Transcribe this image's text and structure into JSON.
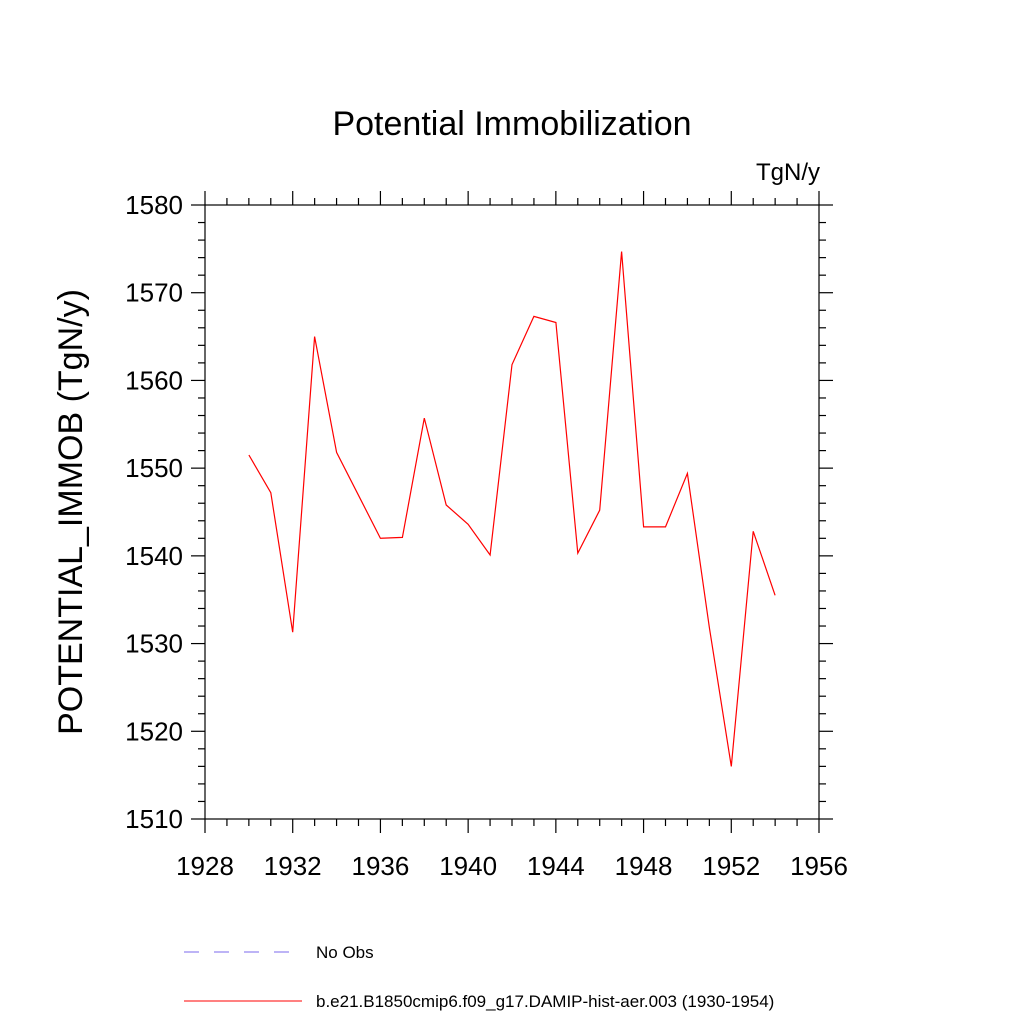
{
  "chart_data": {
    "type": "line",
    "title": "Potential Immobilization",
    "units": "TgN/y",
    "ylabel": "POTENTIAL_IMMOB  (TgN/y)",
    "xlabel": "",
    "xlim": [
      1928,
      1956
    ],
    "ylim": [
      1510,
      1580
    ],
    "xticks": [
      "1928",
      "1932",
      "1936",
      "1940",
      "1944",
      "1948",
      "1952",
      "1956"
    ],
    "yticks": [
      "1510",
      "1520",
      "1530",
      "1540",
      "1550",
      "1560",
      "1570",
      "1580"
    ],
    "grid": false,
    "legend_position": "bottom",
    "series": [
      {
        "name": "b.e21.B1850cmip6.f09_g17.DAMIP-hist-aer.003 (1930-1954)",
        "color": "#ff0000",
        "style": "solid",
        "x": [
          1930,
          1931,
          1932,
          1933,
          1934,
          1935,
          1936,
          1937,
          1938,
          1939,
          1940,
          1941,
          1942,
          1943,
          1944,
          1945,
          1946,
          1947,
          1948,
          1949,
          1950,
          1951,
          1952,
          1953,
          1954
        ],
        "values": [
          1551.5,
          1547.2,
          1531.3,
          1565.0,
          1551.8,
          1546.9,
          1542.0,
          1542.1,
          1555.7,
          1545.8,
          1543.6,
          1540.1,
          1561.8,
          1567.3,
          1566.6,
          1540.3,
          1545.2,
          1574.7,
          1543.3,
          1543.3,
          1549.4,
          1531.8,
          1516.0,
          1542.8,
          1535.5
        ]
      }
    ],
    "legend": [
      {
        "label": "No Obs",
        "color": "#7b68ee",
        "style": "dashed"
      },
      {
        "label": "b.e21.B1850cmip6.f09_g17.DAMIP-hist-aer.003 (1930-1954)",
        "color": "#ff0000",
        "style": "solid"
      }
    ]
  }
}
